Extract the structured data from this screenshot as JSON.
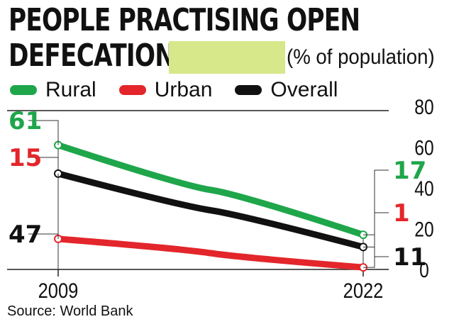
{
  "title": "PEOPLE PRACTISING OPEN DEFECATION",
  "title_line1": "PEOPLE PRACTISING OPEN",
  "title_line2": "DEFECATION",
  "source": "Source: World Bank",
  "colors": {
    "rural": "#1fa64b",
    "urban": "#e3262b",
    "overall": "#111111",
    "highlight": "#d6e88a",
    "axis": "#222222"
  },
  "chart_data": {
    "type": "line",
    "title": "PEOPLE PRACTISING OPEN DEFECATION",
    "unit": "(% of population)",
    "x": [
      "2009",
      "2022"
    ],
    "ylim": [
      0,
      80
    ],
    "yticks": [
      0,
      20,
      40,
      60,
      80
    ],
    "grid": false,
    "legend_position": "top-left",
    "series": [
      {
        "name": "Rural",
        "key": "rural",
        "values": [
          61,
          17
        ]
      },
      {
        "name": "Urban",
        "key": "urban",
        "values": [
          15,
          1
        ]
      },
      {
        "name": "Overall",
        "key": "overall",
        "values": [
          47,
          11
        ]
      }
    ]
  }
}
